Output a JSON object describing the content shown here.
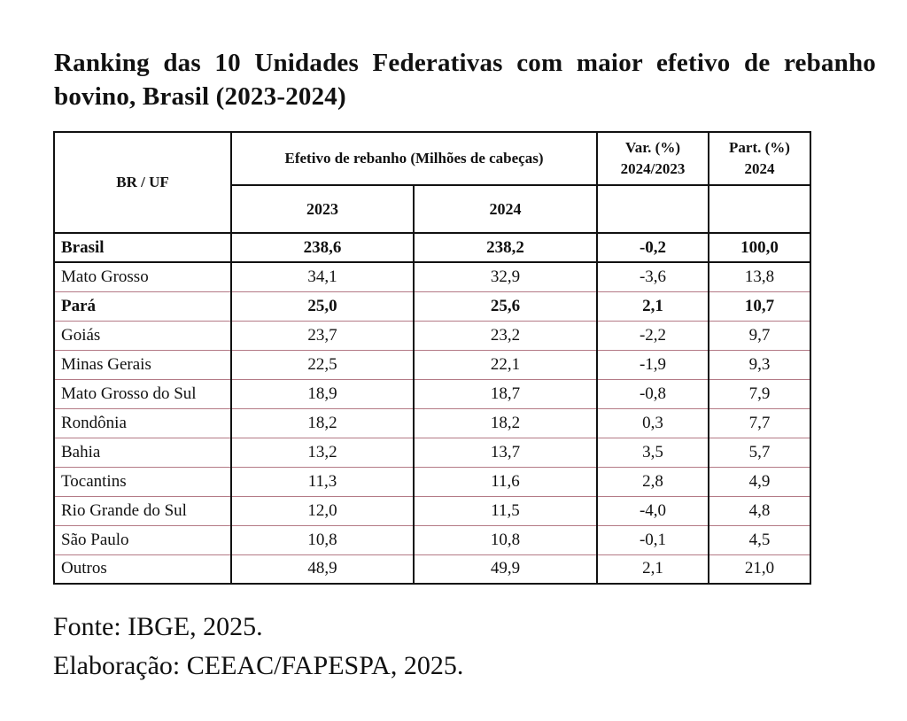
{
  "title": "Ranking das 10 Unidades Federativas com maior efetivo de rebanho bovino, Brasil (2023-2024)",
  "table": {
    "headers": {
      "uf": "BR / UF",
      "efetivo": "Efetivo de rebanho (Milhões de cabeças)",
      "var_line1": "Var. (%)",
      "var_line2": "2024/2023",
      "part_line1": "Part. (%)",
      "part_line2": "2024",
      "year_2023": "2023",
      "year_2024": "2024"
    },
    "rows": [
      {
        "name": "Brasil",
        "v2023": "238,6",
        "v2024": "238,2",
        "var": "-0,2",
        "part": "100,0"
      },
      {
        "name": "Mato Grosso",
        "v2023": "34,1",
        "v2024": "32,9",
        "var": "-3,6",
        "part": "13,8"
      },
      {
        "name": "Pará",
        "v2023": "25,0",
        "v2024": "25,6",
        "var": "2,1",
        "part": "10,7"
      },
      {
        "name": "Goiás",
        "v2023": "23,7",
        "v2024": "23,2",
        "var": "-2,2",
        "part": "9,7"
      },
      {
        "name": "Minas Gerais",
        "v2023": "22,5",
        "v2024": "22,1",
        "var": "-1,9",
        "part": "9,3"
      },
      {
        "name": "Mato Grosso do Sul",
        "v2023": "18,9",
        "v2024": "18,7",
        "var": "-0,8",
        "part": "7,9"
      },
      {
        "name": "Rondônia",
        "v2023": "18,2",
        "v2024": "18,2",
        "var": "0,3",
        "part": "7,7"
      },
      {
        "name": "Bahia",
        "v2023": "13,2",
        "v2024": "13,7",
        "var": "3,5",
        "part": "5,7"
      },
      {
        "name": "Tocantins",
        "v2023": "11,3",
        "v2024": "11,6",
        "var": "2,8",
        "part": "4,9"
      },
      {
        "name": "Rio Grande do Sul",
        "v2023": "12,0",
        "v2024": "11,5",
        "var": "-4,0",
        "part": "4,8"
      },
      {
        "name": "São Paulo",
        "v2023": "10,8",
        "v2024": "10,8",
        "var": "-0,1",
        "part": "4,5"
      },
      {
        "name": "Outros",
        "v2023": "48,9",
        "v2024": "49,9",
        "var": "2,1",
        "part": "21,0"
      }
    ]
  },
  "source": "Fonte: IBGE, 2025.",
  "credit": "Elaboração: CEEAC/FAPESPA, 2025."
}
